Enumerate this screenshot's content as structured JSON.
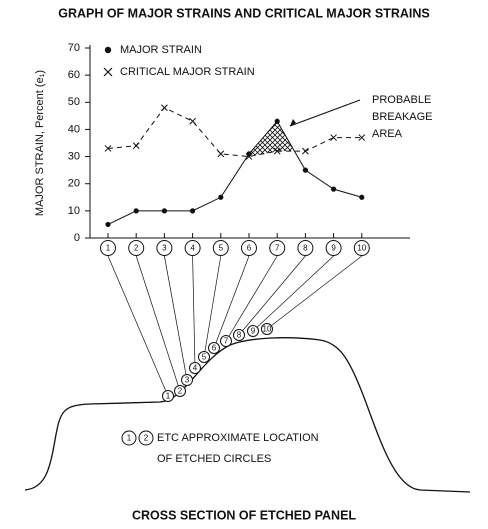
{
  "chart_data": {
    "type": "line",
    "title": "GRAPH OF MAJOR STRAINS AND CRITICAL MAJOR STRAINS",
    "y_label": "MAJOR STRAIN, Percent (e₁)",
    "categories": [
      "1",
      "2",
      "3",
      "4",
      "5",
      "6",
      "7",
      "8",
      "9",
      "10"
    ],
    "series": [
      {
        "name": "MAJOR STRAIN",
        "marker": "dot",
        "color": "#111",
        "values": [
          5,
          10,
          10,
          10,
          15,
          31,
          43,
          25,
          18,
          15
        ]
      },
      {
        "name": "CRITICAL MAJOR STRAIN",
        "marker": "x",
        "dashed": true,
        "color": "#111",
        "values": [
          33,
          34,
          48,
          43,
          31,
          30,
          32,
          32,
          37,
          37
        ]
      }
    ],
    "ylim": [
      0,
      70
    ],
    "yticks": [
      0,
      10,
      20,
      30,
      40,
      50,
      60,
      70
    ],
    "annotation": [
      "PROBABLE",
      "BREAKAGE",
      "AREA"
    ],
    "diagram": {
      "legend_lines": [
        "ETC  APPROXIMATE LOCATION",
        "OF ETCHED CIRCLES"
      ],
      "caption": "CROSS SECTION OF ETCHED PANEL"
    }
  }
}
